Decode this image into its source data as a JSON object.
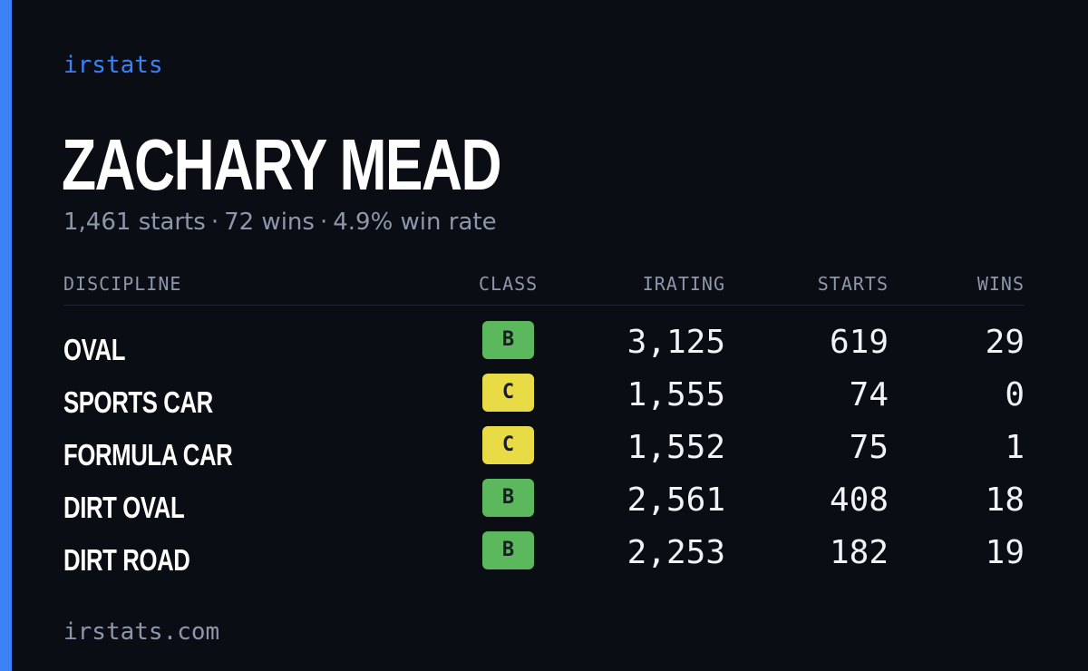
{
  "brand": "irstats",
  "driver": {
    "name": "ZACHARY MEAD",
    "starts_text": "1,461 starts",
    "wins_text": "72 wins",
    "winrate_text": "4.9% win rate",
    "separator": "·"
  },
  "table": {
    "headers": {
      "discipline": "DISCIPLINE",
      "class": "CLASS",
      "irating": "IRATING",
      "starts": "STARTS",
      "wins": "WINS"
    },
    "rows": [
      {
        "discipline": "OVAL",
        "class": "B",
        "irating": "3,125",
        "starts": "619",
        "wins": "29"
      },
      {
        "discipline": "SPORTS CAR",
        "class": "C",
        "irating": "1,555",
        "starts": "74",
        "wins": "0"
      },
      {
        "discipline": "FORMULA CAR",
        "class": "C",
        "irating": "1,552",
        "starts": "75",
        "wins": "1"
      },
      {
        "discipline": "DIRT OVAL",
        "class": "B",
        "irating": "2,561",
        "starts": "408",
        "wins": "18"
      },
      {
        "discipline": "DIRT ROAD",
        "class": "B",
        "irating": "2,253",
        "starts": "182",
        "wins": "19"
      }
    ]
  },
  "class_colors": {
    "B": "#5cb85c",
    "C": "#e8db45"
  },
  "colors": {
    "accent": "#3b82f6",
    "background": "#0b0d14",
    "muted": "#8d97ab"
  },
  "footer": "irstats.com"
}
